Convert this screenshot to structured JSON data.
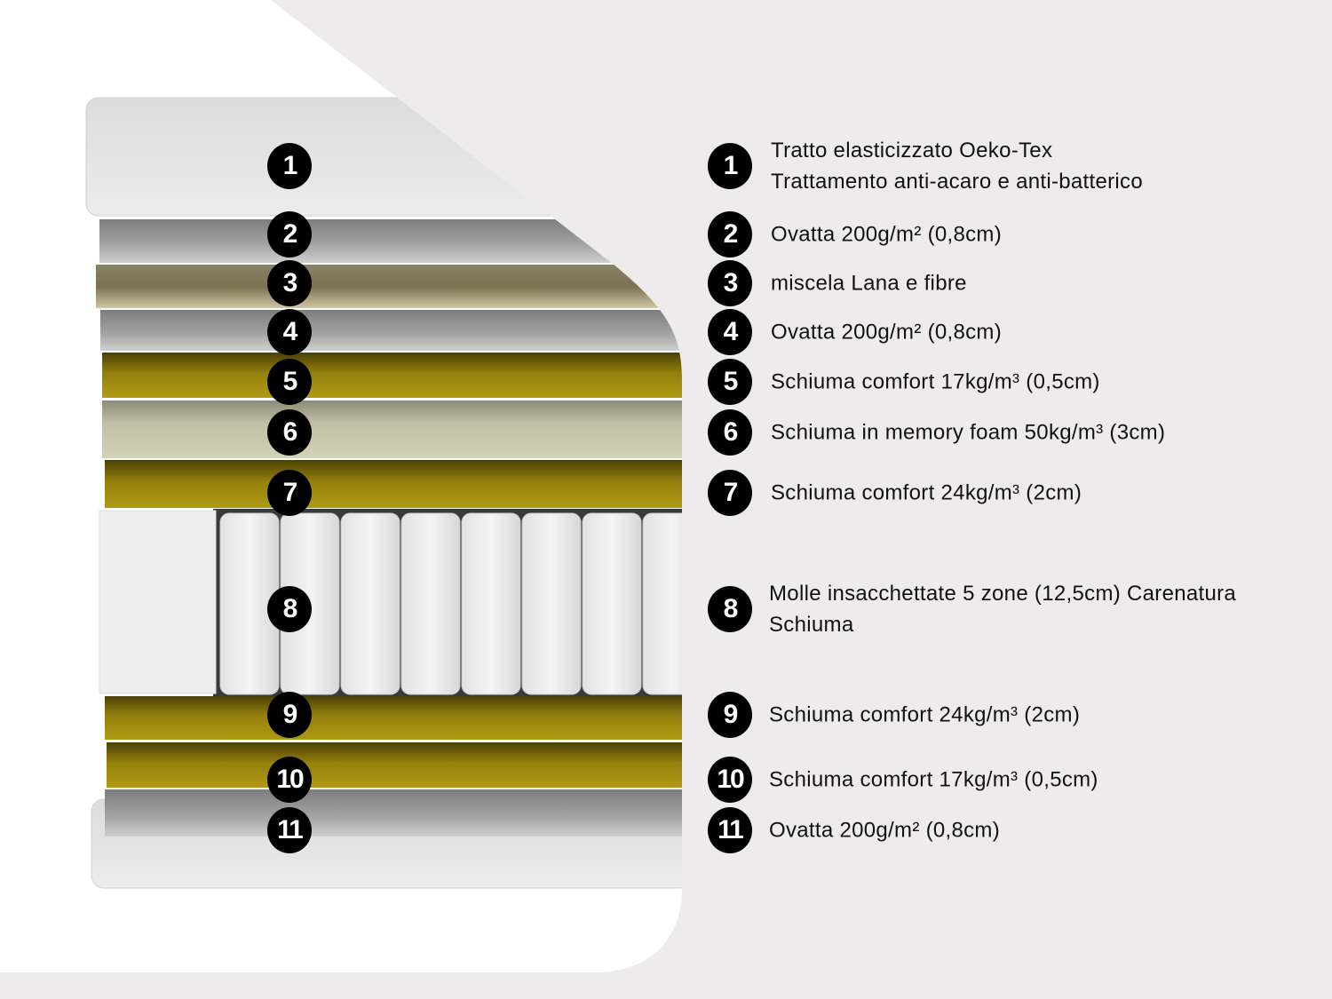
{
  "colors": {
    "background": "#eeebec",
    "badge": "#000000",
    "foam_yellow": "#a8930f",
    "memory_foam": "#cfcdb0",
    "wadding_grey": "#9a9a9a",
    "wool_tan": "#a89f80"
  },
  "layers": [
    {
      "number": "1",
      "lines": [
        "Tratto elasticizzato Oeko-Tex",
        "Trattamento anti-acaro e anti-batterico"
      ]
    },
    {
      "number": "2",
      "lines": [
        "Ovatta 200g/m² (0,8cm)"
      ]
    },
    {
      "number": "3",
      "lines": [
        "miscela Lana e fibre"
      ]
    },
    {
      "number": "4",
      "lines": [
        "Ovatta 200g/m² (0,8cm)"
      ]
    },
    {
      "number": "5",
      "lines": [
        "Schiuma comfort 17kg/m³ (0,5cm)"
      ]
    },
    {
      "number": "6",
      "lines": [
        "Schiuma in memory foam 50kg/m³ (3cm)"
      ]
    },
    {
      "number": "7",
      "lines": [
        "Schiuma comfort 24kg/m³ (2cm)"
      ]
    },
    {
      "number": "8",
      "lines": [
        "Molle insacchettate 5 zone (12,5cm) Carenatura",
        "Schiuma"
      ]
    },
    {
      "number": "9",
      "lines": [
        "Schiuma comfort 24kg/m³ (2cm)"
      ]
    },
    {
      "number": "10",
      "lines": [
        "Schiuma comfort 17kg/m³ (0,5cm)"
      ]
    },
    {
      "number": "11",
      "lines": [
        "Ovatta 200g/m² (0,8cm)"
      ]
    }
  ]
}
